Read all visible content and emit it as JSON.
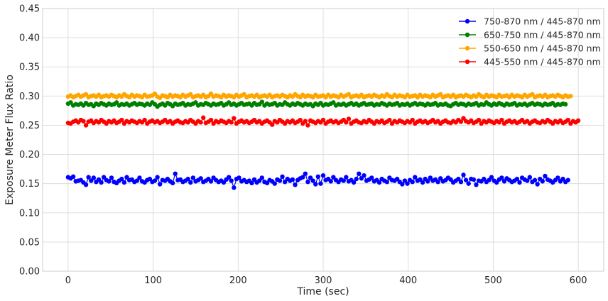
{
  "chart_data": {
    "type": "line",
    "title": "",
    "xlabel": "Time (sec)",
    "ylabel": "Exposure Meter Flux Ratio",
    "xlim": [
      -30,
      630
    ],
    "ylim": [
      0.0,
      0.45
    ],
    "xticks": [
      0,
      100,
      200,
      300,
      400,
      500,
      600
    ],
    "yticks": [
      0.0,
      0.05,
      0.1,
      0.15,
      0.2,
      0.25,
      0.3,
      0.35,
      0.4,
      0.45
    ],
    "xtick_labels": [
      "0",
      "100",
      "200",
      "300",
      "400",
      "500",
      "600"
    ],
    "ytick_labels": [
      "0.00",
      "0.05",
      "0.10",
      "0.15",
      "0.20",
      "0.25",
      "0.30",
      "0.35",
      "0.40",
      "0.45"
    ],
    "grid": true,
    "legend_position": "top-right",
    "x_start": 0,
    "x_step": 3,
    "series": [
      {
        "name": "750-870 nm / 445-870 nm",
        "color": "#0000ff",
        "values": [
          0.161,
          0.159,
          0.162,
          0.154,
          0.155,
          0.156,
          0.152,
          0.148,
          0.161,
          0.155,
          0.16,
          0.153,
          0.157,
          0.152,
          0.161,
          0.156,
          0.154,
          0.16,
          0.153,
          0.151,
          0.155,
          0.158,
          0.152,
          0.161,
          0.156,
          0.157,
          0.153,
          0.155,
          0.16,
          0.154,
          0.152,
          0.156,
          0.158,
          0.153,
          0.155,
          0.161,
          0.149,
          0.156,
          0.155,
          0.158,
          0.154,
          0.151,
          0.167,
          0.156,
          0.157,
          0.153,
          0.155,
          0.158,
          0.152,
          0.16,
          0.154,
          0.156,
          0.159,
          0.153,
          0.155,
          0.158,
          0.154,
          0.16,
          0.156,
          0.153,
          0.155,
          0.152,
          0.157,
          0.161,
          0.155,
          0.143,
          0.158,
          0.16,
          0.154,
          0.156,
          0.153,
          0.155,
          0.151,
          0.157,
          0.152,
          0.155,
          0.16,
          0.153,
          0.151,
          0.156,
          0.154,
          0.15,
          0.157,
          0.155,
          0.162,
          0.153,
          0.158,
          0.155,
          0.157,
          0.148,
          0.156,
          0.159,
          0.161,
          0.167,
          0.153,
          0.16,
          0.155,
          0.149,
          0.162,
          0.15,
          0.164,
          0.156,
          0.158,
          0.154,
          0.161,
          0.156,
          0.153,
          0.157,
          0.155,
          0.161,
          0.154,
          0.156,
          0.152,
          0.158,
          0.167,
          0.159,
          0.164,
          0.155,
          0.157,
          0.16,
          0.154,
          0.156,
          0.152,
          0.158,
          0.155,
          0.153,
          0.16,
          0.156,
          0.155,
          0.158,
          0.153,
          0.149,
          0.155,
          0.15,
          0.156,
          0.153,
          0.161,
          0.155,
          0.157,
          0.152,
          0.158,
          0.154,
          0.16,
          0.155,
          0.157,
          0.153,
          0.159,
          0.154,
          0.156,
          0.16,
          0.157,
          0.152,
          0.155,
          0.158,
          0.153,
          0.165,
          0.156,
          0.15,
          0.158,
          0.157,
          0.148,
          0.155,
          0.154,
          0.158,
          0.153,
          0.156,
          0.161,
          0.155,
          0.152,
          0.157,
          0.16,
          0.154,
          0.159,
          0.156,
          0.153,
          0.155,
          0.158,
          0.152,
          0.16,
          0.157,
          0.155,
          0.161,
          0.153,
          0.156,
          0.149,
          0.158,
          0.154,
          0.163,
          0.157,
          0.155,
          0.152,
          0.156,
          0.16,
          0.154,
          0.158,
          0.153,
          0.156
        ],
        "marker": "circle"
      },
      {
        "name": "650-750 nm / 445-870 nm",
        "color": "#008000",
        "values": [
          0.287,
          0.289,
          0.284,
          0.286,
          0.285,
          0.287,
          0.284,
          0.288,
          0.285,
          0.286,
          0.283,
          0.287,
          0.285,
          0.288,
          0.286,
          0.284,
          0.287,
          0.285,
          0.286,
          0.289,
          0.284,
          0.286,
          0.285,
          0.287,
          0.284,
          0.286,
          0.288,
          0.285,
          0.287,
          0.286,
          0.284,
          0.287,
          0.285,
          0.289,
          0.286,
          0.282,
          0.285,
          0.287,
          0.284,
          0.288,
          0.286,
          0.283,
          0.287,
          0.285,
          0.286,
          0.288,
          0.284,
          0.286,
          0.285,
          0.287,
          0.289,
          0.284,
          0.286,
          0.285,
          0.288,
          0.286,
          0.284,
          0.287,
          0.285,
          0.286,
          0.288,
          0.284,
          0.286,
          0.289,
          0.285,
          0.287,
          0.284,
          0.286,
          0.288,
          0.285,
          0.286,
          0.287,
          0.284,
          0.288,
          0.285,
          0.286,
          0.29,
          0.284,
          0.287,
          0.285,
          0.286,
          0.288,
          0.284,
          0.286,
          0.285,
          0.289,
          0.286,
          0.284,
          0.287,
          0.285,
          0.288,
          0.286,
          0.284,
          0.287,
          0.285,
          0.286,
          0.283,
          0.287,
          0.285,
          0.288,
          0.284,
          0.286,
          0.285,
          0.287,
          0.289,
          0.284,
          0.286,
          0.285,
          0.287,
          0.284,
          0.286,
          0.288,
          0.285,
          0.287,
          0.284,
          0.286,
          0.288,
          0.285,
          0.286,
          0.287,
          0.284,
          0.286,
          0.285,
          0.288,
          0.286,
          0.284,
          0.287,
          0.285,
          0.286,
          0.288,
          0.284,
          0.286,
          0.285,
          0.287,
          0.284,
          0.286,
          0.288,
          0.285,
          0.287,
          0.286,
          0.284,
          0.287,
          0.285,
          0.286,
          0.288,
          0.284,
          0.286,
          0.285,
          0.287,
          0.284,
          0.283,
          0.286,
          0.288,
          0.285,
          0.287,
          0.286,
          0.284,
          0.287,
          0.285,
          0.286,
          0.288,
          0.284,
          0.286,
          0.285,
          0.289,
          0.286,
          0.284,
          0.287,
          0.285,
          0.288,
          0.286,
          0.284,
          0.287,
          0.285,
          0.286,
          0.288,
          0.284,
          0.286,
          0.285,
          0.287,
          0.284,
          0.286,
          0.288,
          0.285,
          0.287,
          0.286,
          0.284,
          0.287,
          0.285,
          0.286,
          0.288,
          0.284,
          0.286,
          0.285,
          0.287,
          0.286
        ],
        "marker": "circle"
      },
      {
        "name": "550-650 nm / 445-870 nm",
        "color": "#ffa500",
        "values": [
          0.299,
          0.301,
          0.298,
          0.3,
          0.302,
          0.299,
          0.301,
          0.303,
          0.298,
          0.3,
          0.301,
          0.299,
          0.302,
          0.298,
          0.3,
          0.301,
          0.299,
          0.302,
          0.3,
          0.298,
          0.301,
          0.299,
          0.303,
          0.3,
          0.298,
          0.302,
          0.299,
          0.301,
          0.3,
          0.298,
          0.302,
          0.299,
          0.3,
          0.301,
          0.304,
          0.299,
          0.297,
          0.301,
          0.3,
          0.298,
          0.302,
          0.299,
          0.301,
          0.3,
          0.298,
          0.302,
          0.299,
          0.301,
          0.303,
          0.298,
          0.3,
          0.301,
          0.299,
          0.302,
          0.298,
          0.3,
          0.304,
          0.299,
          0.301,
          0.3,
          0.298,
          0.302,
          0.299,
          0.301,
          0.3,
          0.298,
          0.302,
          0.299,
          0.301,
          0.303,
          0.298,
          0.3,
          0.301,
          0.299,
          0.302,
          0.298,
          0.3,
          0.301,
          0.299,
          0.302,
          0.298,
          0.3,
          0.301,
          0.299,
          0.302,
          0.3,
          0.298,
          0.301,
          0.299,
          0.303,
          0.3,
          0.298,
          0.302,
          0.299,
          0.301,
          0.3,
          0.298,
          0.302,
          0.299,
          0.3,
          0.301,
          0.298,
          0.302,
          0.299,
          0.301,
          0.3,
          0.298,
          0.302,
          0.299,
          0.301,
          0.303,
          0.298,
          0.3,
          0.301,
          0.299,
          0.302,
          0.298,
          0.3,
          0.301,
          0.299,
          0.302,
          0.3,
          0.298,
          0.301,
          0.299,
          0.303,
          0.3,
          0.298,
          0.302,
          0.299,
          0.301,
          0.3,
          0.298,
          0.302,
          0.299,
          0.3,
          0.301,
          0.298,
          0.302,
          0.299,
          0.301,
          0.3,
          0.298,
          0.302,
          0.299,
          0.301,
          0.303,
          0.298,
          0.3,
          0.301,
          0.299,
          0.302,
          0.298,
          0.3,
          0.301,
          0.299,
          0.302,
          0.3,
          0.298,
          0.301,
          0.299,
          0.303,
          0.3,
          0.298,
          0.302,
          0.299,
          0.301,
          0.3,
          0.298,
          0.302,
          0.299,
          0.3,
          0.301,
          0.298,
          0.302,
          0.299,
          0.301,
          0.3,
          0.298,
          0.302,
          0.299,
          0.301,
          0.303,
          0.298,
          0.3,
          0.301,
          0.299,
          0.302,
          0.298,
          0.3,
          0.301,
          0.299,
          0.302,
          0.3,
          0.298,
          0.301,
          0.299,
          0.3
        ],
        "marker": "circle"
      },
      {
        "name": "445-550 nm / 445-870 nm",
        "color": "#ff0000",
        "values": [
          0.254,
          0.253,
          0.256,
          0.258,
          0.255,
          0.259,
          0.257,
          0.25,
          0.256,
          0.258,
          0.254,
          0.257,
          0.255,
          0.259,
          0.256,
          0.253,
          0.257,
          0.255,
          0.258,
          0.254,
          0.256,
          0.259,
          0.253,
          0.257,
          0.255,
          0.258,
          0.256,
          0.254,
          0.257,
          0.255,
          0.259,
          0.253,
          0.256,
          0.258,
          0.255,
          0.257,
          0.254,
          0.256,
          0.259,
          0.255,
          0.257,
          0.253,
          0.256,
          0.258,
          0.255,
          0.254,
          0.257,
          0.255,
          0.259,
          0.256,
          0.253,
          0.257,
          0.255,
          0.263,
          0.254,
          0.256,
          0.259,
          0.253,
          0.257,
          0.255,
          0.258,
          0.256,
          0.254,
          0.257,
          0.255,
          0.262,
          0.253,
          0.256,
          0.258,
          0.255,
          0.257,
          0.254,
          0.256,
          0.259,
          0.255,
          0.257,
          0.253,
          0.256,
          0.258,
          0.255,
          0.251,
          0.257,
          0.255,
          0.259,
          0.256,
          0.253,
          0.257,
          0.255,
          0.258,
          0.254,
          0.256,
          0.259,
          0.253,
          0.257,
          0.25,
          0.258,
          0.256,
          0.254,
          0.257,
          0.255,
          0.259,
          0.253,
          0.256,
          0.258,
          0.255,
          0.257,
          0.254,
          0.256,
          0.259,
          0.255,
          0.261,
          0.253,
          0.256,
          0.258,
          0.255,
          0.254,
          0.257,
          0.255,
          0.259,
          0.256,
          0.253,
          0.257,
          0.255,
          0.258,
          0.254,
          0.256,
          0.259,
          0.253,
          0.257,
          0.255,
          0.258,
          0.256,
          0.254,
          0.257,
          0.255,
          0.259,
          0.253,
          0.256,
          0.258,
          0.255,
          0.257,
          0.254,
          0.256,
          0.259,
          0.255,
          0.257,
          0.253,
          0.256,
          0.258,
          0.255,
          0.254,
          0.257,
          0.255,
          0.259,
          0.256,
          0.262,
          0.257,
          0.255,
          0.258,
          0.254,
          0.256,
          0.259,
          0.253,
          0.257,
          0.255,
          0.258,
          0.256,
          0.254,
          0.257,
          0.255,
          0.259,
          0.253,
          0.256,
          0.258,
          0.255,
          0.257,
          0.254,
          0.256,
          0.259,
          0.255,
          0.257,
          0.253,
          0.256,
          0.258,
          0.255,
          0.254,
          0.257,
          0.255,
          0.259,
          0.256,
          0.253,
          0.257,
          0.255,
          0.258,
          0.254,
          0.256,
          0.259,
          0.253,
          0.257,
          0.255,
          0.258
        ],
        "marker": "circle"
      }
    ]
  }
}
